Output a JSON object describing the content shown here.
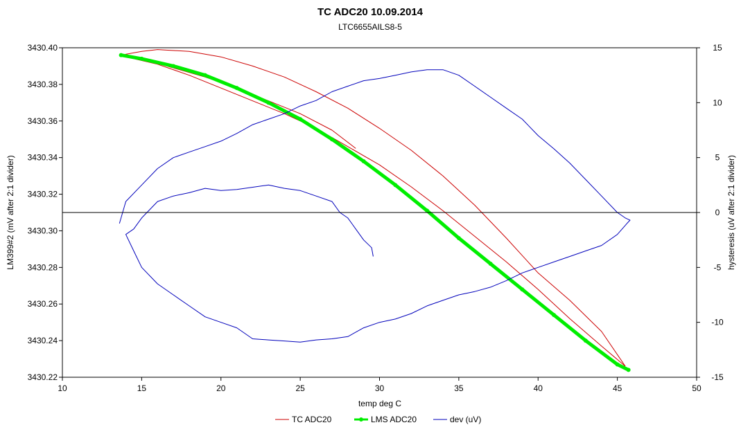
{
  "chart_data": {
    "type": "line",
    "title": "TC ADC20 10.09.2014",
    "subtitle": "LTC6655AILS8-5",
    "xlabel": "temp deg C",
    "ylabel": "LM399#2 (mV after 2:1 divider)",
    "y2label": "hysteresis (uV after 2:1 divider)",
    "xlim": [
      10,
      50
    ],
    "ylim": [
      3430.22,
      3430.4
    ],
    "y2lim": [
      -15,
      15
    ],
    "xticks": [
      "10",
      "15",
      "20",
      "25",
      "30",
      "35",
      "40",
      "45",
      "50"
    ],
    "yticks": [
      "3430.22",
      "3430.24",
      "3430.26",
      "3430.28",
      "3430.30",
      "3430.32",
      "3430.34",
      "3430.36",
      "3430.38",
      "3430.40"
    ],
    "y2ticks": [
      "-15",
      "-10",
      "-5",
      "0",
      "5",
      "10",
      "15"
    ],
    "grid": false,
    "legend_position": "bottom",
    "series": [
      {
        "name": "TC ADC20",
        "color": "#cc0000",
        "axis": "left",
        "segments": [
          [
            [
              13.7,
              3430.396
            ],
            [
              15,
              3430.398
            ],
            [
              16,
              3430.399
            ],
            [
              18,
              3430.398
            ],
            [
              20,
              3430.395
            ],
            [
              22,
              3430.39
            ],
            [
              24,
              3430.384
            ],
            [
              26,
              3430.376
            ],
            [
              28,
              3430.367
            ],
            [
              30,
              3430.356
            ],
            [
              32,
              3430.344
            ],
            [
              34,
              3430.33
            ],
            [
              36,
              3430.314
            ],
            [
              38,
              3430.296
            ],
            [
              40,
              3430.277
            ],
            [
              42,
              3430.262
            ],
            [
              44,
              3430.245
            ],
            [
              45.5,
              3430.226
            ]
          ],
          [
            [
              45.5,
              3430.226
            ],
            [
              44,
              3430.237
            ],
            [
              42,
              3430.252
            ],
            [
              40,
              3430.268
            ],
            [
              38,
              3430.283
            ],
            [
              36,
              3430.297
            ],
            [
              34,
              3430.311
            ],
            [
              32,
              3430.324
            ],
            [
              30,
              3430.336
            ],
            [
              28,
              3430.346
            ],
            [
              26,
              3430.356
            ],
            [
              24,
              3430.364
            ],
            [
              22,
              3430.371
            ],
            [
              20,
              3430.378
            ],
            [
              18,
              3430.385
            ],
            [
              16,
              3430.391
            ],
            [
              14,
              3430.395
            ],
            [
              13.8,
              3430.396
            ]
          ],
          [
            [
              13.8,
              3430.396
            ],
            [
              15,
              3430.394
            ],
            [
              17,
              3430.389
            ],
            [
              19,
              3430.384
            ],
            [
              21,
              3430.378
            ],
            [
              23,
              3430.371
            ],
            [
              25,
              3430.364
            ],
            [
              27,
              3430.355
            ],
            [
              28.5,
              3430.345
            ]
          ]
        ]
      },
      {
        "name": "LMS ADC20",
        "color": "#00ee00",
        "axis": "left",
        "points": [
          [
            13.7,
            3430.396
          ],
          [
            15,
            3430.394
          ],
          [
            17,
            3430.39
          ],
          [
            19,
            3430.385
          ],
          [
            21,
            3430.378
          ],
          [
            23,
            3430.37
          ],
          [
            25,
            3430.361
          ],
          [
            27,
            3430.35
          ],
          [
            29,
            3430.338
          ],
          [
            31,
            3430.325
          ],
          [
            33,
            3430.311
          ],
          [
            35,
            3430.296
          ],
          [
            37,
            3430.282
          ],
          [
            39,
            3430.268
          ],
          [
            41,
            3430.254
          ],
          [
            43,
            3430.24
          ],
          [
            45,
            3430.227
          ],
          [
            45.7,
            3430.224
          ]
        ]
      },
      {
        "name": "dev (uV)",
        "color": "#0000bb",
        "axis": "right",
        "points": [
          [
            29.6,
            -4
          ],
          [
            29.5,
            -3.2
          ],
          [
            29,
            -2.5
          ],
          [
            28.5,
            -1.5
          ],
          [
            28,
            -0.5
          ],
          [
            27.5,
            0
          ],
          [
            27,
            1
          ],
          [
            26,
            1.5
          ],
          [
            25,
            2
          ],
          [
            24,
            2.2
          ],
          [
            23,
            2.5
          ],
          [
            22,
            2.3
          ],
          [
            21,
            2.1
          ],
          [
            20,
            2.0
          ],
          [
            19,
            2.2
          ],
          [
            18,
            1.8
          ],
          [
            17,
            1.5
          ],
          [
            16,
            1
          ],
          [
            15,
            -0.5
          ],
          [
            14.5,
            -1.5
          ],
          [
            14,
            -2
          ],
          [
            14.5,
            -3.5
          ],
          [
            15,
            -5
          ],
          [
            16,
            -6.5
          ],
          [
            17,
            -7.5
          ],
          [
            18,
            -8.5
          ],
          [
            19,
            -9.5
          ],
          [
            20,
            -10
          ],
          [
            21,
            -10.5
          ],
          [
            22,
            -11.5
          ],
          [
            23,
            -11.6
          ],
          [
            24,
            -11.7
          ],
          [
            25,
            -11.8
          ],
          [
            26,
            -11.6
          ],
          [
            27,
            -11.5
          ],
          [
            28,
            -11.3
          ],
          [
            29,
            -10.5
          ],
          [
            30,
            -10
          ],
          [
            31,
            -9.7
          ],
          [
            32,
            -9.2
          ],
          [
            33,
            -8.5
          ],
          [
            34,
            -8
          ],
          [
            35,
            -7.5
          ],
          [
            36,
            -7.2
          ],
          [
            37,
            -6.8
          ],
          [
            38,
            -6.2
          ],
          [
            39,
            -5.5
          ],
          [
            40,
            -5
          ],
          [
            41,
            -4.5
          ],
          [
            42,
            -4
          ],
          [
            43,
            -3.5
          ],
          [
            44,
            -3
          ],
          [
            45,
            -2
          ],
          [
            45.6,
            -1
          ],
          [
            45.8,
            -0.7
          ],
          [
            45.5,
            -0.5
          ],
          [
            45,
            0
          ],
          [
            44,
            1.5
          ],
          [
            43,
            3
          ],
          [
            42,
            4.5
          ],
          [
            41,
            5.8
          ],
          [
            40,
            7
          ],
          [
            39,
            8.5
          ],
          [
            38,
            9.5
          ],
          [
            37,
            10.5
          ],
          [
            36,
            11.5
          ],
          [
            35,
            12.5
          ],
          [
            34,
            13
          ],
          [
            33,
            13
          ],
          [
            32,
            12.8
          ],
          [
            31,
            12.5
          ],
          [
            30,
            12.2
          ],
          [
            29,
            12.0
          ],
          [
            28,
            11.5
          ],
          [
            27,
            11.0
          ],
          [
            26,
            10.2
          ],
          [
            25,
            9.7
          ],
          [
            24,
            9.0
          ],
          [
            23,
            8.5
          ],
          [
            22,
            8.0
          ],
          [
            21,
            7.2
          ],
          [
            20,
            6.5
          ],
          [
            19,
            6.0
          ],
          [
            18,
            5.5
          ],
          [
            17,
            5.0
          ],
          [
            16,
            4.0
          ],
          [
            15,
            2.5
          ],
          [
            14,
            1
          ],
          [
            13.6,
            -1
          ]
        ]
      }
    ]
  }
}
